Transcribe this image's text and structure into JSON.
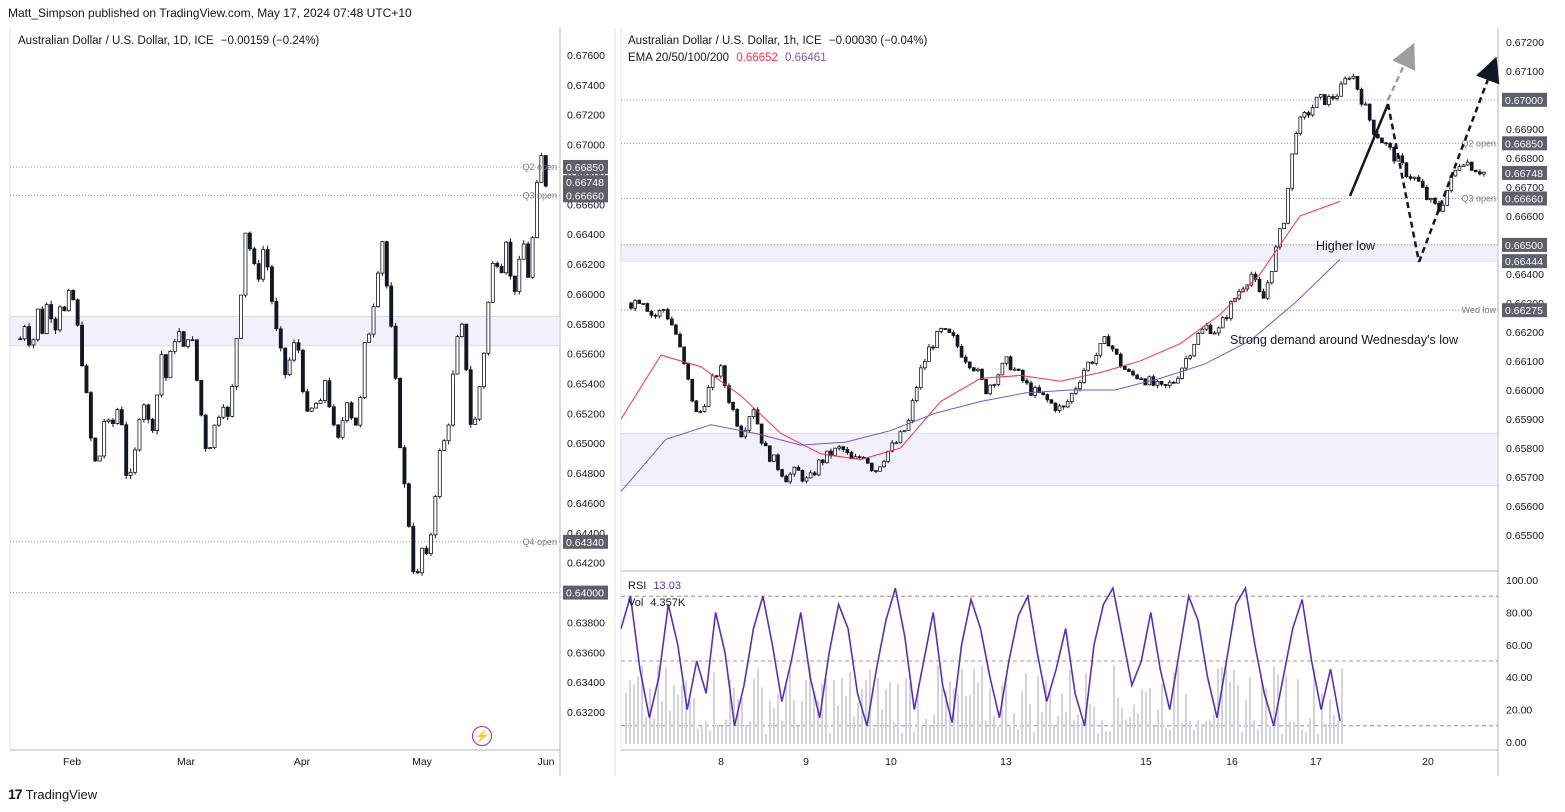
{
  "publisher": "Matt_Simpson published on TradingView.com, May 17, 2024 07:48 UTC+10",
  "footer_brand": "TradingView",
  "colors": {
    "up": "#ffffff",
    "down": "#131722",
    "ema50": "#f23645",
    "ema100": "#7e57c2",
    "rsi": "#5b2fb8",
    "zone": "#ede9fb",
    "grid": "#b2b5be"
  },
  "chart_data": [
    {
      "type": "candlestick",
      "title": "Australian Dollar / U.S. Dollar, 1D, ICE",
      "change": "−0.00159 (−0.24%)",
      "ylim": [
        0.631,
        0.6768
      ],
      "y_ticks": [
        "0.67600",
        "0.67400",
        "0.67200",
        "0.67000",
        "0.66800",
        "0.66600",
        "0.66400",
        "0.66200",
        "0.66000",
        "0.65800",
        "0.65600",
        "0.65400",
        "0.65200",
        "0.65000",
        "0.64800",
        "0.64600",
        "0.64400",
        "0.64200",
        "0.64000",
        "0.63800",
        "0.63600",
        "0.63400",
        "0.63200"
      ],
      "x_ticks": [
        "Feb",
        "Mar",
        "Apr",
        "May",
        "Jun"
      ],
      "price_labels": [
        {
          "label": "Q2 open",
          "value": "0.66850",
          "v": 0.6685
        },
        {
          "label": "",
          "value": "0.66748",
          "v": 0.66748
        },
        {
          "label": "Q3 open",
          "value": "0.66660",
          "v": 0.6666
        },
        {
          "label": "Q4 open",
          "value": "0.64340",
          "v": 0.6434
        },
        {
          "label": "",
          "value": "0.64000",
          "v": 0.64
        }
      ],
      "close_path": [
        0.657,
        0.6584,
        0.656,
        0.659,
        0.6575,
        0.66,
        0.6575,
        0.6595,
        0.6585,
        0.6605,
        0.658,
        0.6555,
        0.652,
        0.6485,
        0.649,
        0.652,
        0.6505,
        0.6525,
        0.6515,
        0.647,
        0.648,
        0.652,
        0.653,
        0.6505,
        0.6525,
        0.656,
        0.654,
        0.657,
        0.6575,
        0.656,
        0.658,
        0.655,
        0.652,
        0.6495,
        0.6505,
        0.652,
        0.653,
        0.651,
        0.656,
        0.66,
        0.665,
        0.662,
        0.661,
        0.663,
        0.6615,
        0.658,
        0.656,
        0.6545,
        0.656,
        0.657,
        0.654,
        0.651,
        0.653,
        0.652,
        0.6545,
        0.652,
        0.6495,
        0.6515,
        0.6535,
        0.651,
        0.652,
        0.6565,
        0.658,
        0.661,
        0.664,
        0.66,
        0.656,
        0.651,
        0.647,
        0.644,
        0.64,
        0.643,
        0.642,
        0.645,
        0.649,
        0.65,
        0.652,
        0.656,
        0.658,
        0.655,
        0.65,
        0.653,
        0.656,
        0.66,
        0.663,
        0.6615,
        0.664,
        0.66,
        0.661,
        0.6635,
        0.661,
        0.665,
        0.6695,
        0.6675
      ],
      "zones": [
        [
          0.65652,
          0.6585
        ]
      ],
      "dotted_levels": [
        0.6685,
        0.6666,
        0.6434,
        0.64
      ]
    },
    {
      "type": "candlestick",
      "title": "Australian Dollar / U.S. Dollar, 1h, ICE",
      "change": "−0.00030 (−0.04%)",
      "ema_label": "EMA 20/50/100/200",
      "ema_values": [
        "0.66652",
        "0.66461"
      ],
      "ylim": [
        0.655,
        0.6722
      ],
      "y_ticks": [
        "0.67200",
        "0.67100",
        "0.67000",
        "0.66900",
        "0.66800",
        "0.66700",
        "0.66600",
        "0.66500",
        "0.66400",
        "0.66300",
        "0.66200",
        "0.66100",
        "0.66000",
        "0.65900",
        "0.65800",
        "0.65700",
        "0.65600",
        "0.65500"
      ],
      "x_ticks": [
        "8",
        "9",
        "10",
        "13",
        "15",
        "16",
        "17",
        "20"
      ],
      "price_labels": [
        {
          "label": "",
          "value": "0.67000",
          "v": 0.67
        },
        {
          "label": "Q2 open",
          "value": "0.66850",
          "v": 0.6685
        },
        {
          "label": "",
          "value": "0.66748",
          "v": 0.66748
        },
        {
          "label": "Q3 open",
          "value": "0.66660",
          "v": 0.6666
        },
        {
          "label": "",
          "value": "0.66500",
          "v": 0.665
        },
        {
          "label": "",
          "value": "0.66444",
          "v": 0.66444
        },
        {
          "label": "Wed low",
          "value": "0.66275",
          "v": 0.66275
        }
      ],
      "close_path": [
        0.663,
        0.6632,
        0.6625,
        0.6628,
        0.662,
        0.6605,
        0.659,
        0.66,
        0.6608,
        0.6595,
        0.6585,
        0.6595,
        0.658,
        0.6575,
        0.657,
        0.6572,
        0.6568,
        0.6575,
        0.6578,
        0.658,
        0.6575,
        0.6578,
        0.6572,
        0.6578,
        0.6582,
        0.6588,
        0.6605,
        0.6615,
        0.662,
        0.6618,
        0.6612,
        0.6608,
        0.66,
        0.6605,
        0.661,
        0.6605,
        0.66,
        0.6598,
        0.6595,
        0.6593,
        0.66,
        0.6608,
        0.6612,
        0.6618,
        0.661,
        0.6605,
        0.6605,
        0.6602,
        0.66,
        0.6603,
        0.661,
        0.6618,
        0.6622,
        0.662,
        0.6628,
        0.6635,
        0.664,
        0.663,
        0.6645,
        0.666,
        0.669,
        0.6695,
        0.67,
        0.67,
        0.6703,
        0.671,
        0.67,
        0.669,
        0.6685,
        0.668,
        0.6675,
        0.6672,
        0.6665,
        0.6662,
        0.6672,
        0.668,
        0.6677,
        0.6675
      ],
      "ema_fast": [
        0.659,
        0.6612,
        0.6608,
        0.6598,
        0.6585,
        0.6578,
        0.6576,
        0.658,
        0.6596,
        0.6604,
        0.6605,
        0.6603,
        0.6606,
        0.661,
        0.6616,
        0.6626,
        0.664,
        0.666,
        0.6665
      ],
      "ema_slow": [
        0.6565,
        0.6583,
        0.6588,
        0.6585,
        0.6581,
        0.6582,
        0.6586,
        0.6592,
        0.6596,
        0.6599,
        0.66,
        0.66,
        0.6604,
        0.6609,
        0.6617,
        0.663,
        0.6645
      ],
      "zones": [
        [
          0.6567,
          0.6585
        ],
        [
          0.66444,
          0.665
        ]
      ],
      "dotted_levels": [
        0.67,
        0.6685,
        0.6666,
        0.665,
        0.66275
      ],
      "annotations": [
        "Higher low",
        "Strong demand around Wednesday's low"
      ]
    },
    {
      "type": "line",
      "title": "RSI",
      "rsi_value": "13.03",
      "vol_label": "Vol",
      "vol_value": "4.357K",
      "ylim": [
        0,
        100
      ],
      "y_ticks": [
        "100.00",
        "80.00",
        "60.00",
        "40.00",
        "20.00",
        "0.00"
      ],
      "levels": [
        90,
        50,
        10
      ],
      "values": [
        70,
        90,
        45,
        15,
        40,
        85,
        60,
        20,
        50,
        30,
        80,
        55,
        10,
        35,
        70,
        90,
        60,
        25,
        50,
        80,
        40,
        15,
        55,
        85,
        70,
        30,
        10,
        45,
        75,
        95,
        65,
        20,
        50,
        80,
        35,
        12,
        60,
        88,
        70,
        40,
        15,
        50,
        78,
        90,
        55,
        25,
        45,
        70,
        30,
        10,
        60,
        85,
        95,
        65,
        35,
        50,
        80,
        45,
        20,
        55,
        90,
        75,
        40,
        15,
        50,
        85,
        95,
        60,
        30,
        10,
        40,
        70,
        88,
        50,
        20,
        45,
        13
      ]
    }
  ]
}
